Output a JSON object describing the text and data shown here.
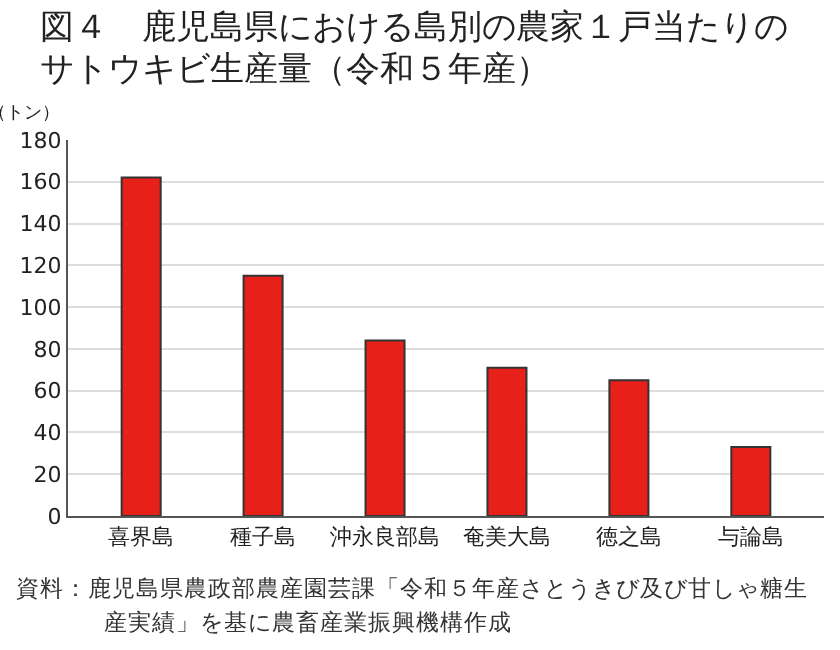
{
  "chart_data": {
    "type": "bar",
    "title": "図４　鹿児島県における島別の農家１戸当たりのサトウキビ生産量（令和５年産）",
    "ylabel": "（トン）",
    "categories": [
      "喜界島",
      "種子島",
      "沖永良部島",
      "奄美大島",
      "徳之島",
      "与論島"
    ],
    "values": [
      162,
      115,
      84,
      71,
      65,
      33
    ],
    "color": "#e8201a",
    "ylim": [
      0,
      180
    ],
    "yticks": [
      0,
      20,
      40,
      60,
      80,
      100,
      120,
      140,
      160,
      180
    ],
    "grid": "y",
    "annotations": [
      "資料：鹿児島県農政部農産園芸課「令和５年産さとうきび及び甘しゃ糖生産実績」を基に農畜産業振興機構作成"
    ]
  }
}
